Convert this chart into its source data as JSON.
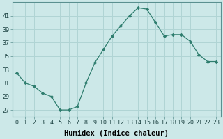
{
  "x": [
    0,
    1,
    2,
    3,
    4,
    5,
    6,
    7,
    8,
    9,
    10,
    11,
    12,
    13,
    14,
    15,
    16,
    17,
    18,
    19,
    20,
    21,
    22,
    23
  ],
  "y": [
    32.5,
    31.0,
    30.5,
    29.5,
    29.0,
    27.0,
    27.0,
    27.5,
    31.0,
    34.0,
    36.0,
    38.0,
    39.5,
    41.0,
    42.2,
    42.0,
    40.0,
    38.0,
    38.2,
    38.2,
    37.2,
    35.2,
    34.2,
    34.2
  ],
  "line_color": "#2e7d6e",
  "marker": "D",
  "marker_size": 2.2,
  "bg_color": "#cce8e8",
  "grid_color": "#b0d4d4",
  "xlabel": "Humidex (Indice chaleur)",
  "xlim": [
    -0.5,
    23.5
  ],
  "ylim": [
    26,
    43
  ],
  "yticks": [
    27,
    29,
    31,
    33,
    35,
    37,
    39,
    41
  ],
  "xticks": [
    0,
    1,
    2,
    3,
    4,
    5,
    6,
    7,
    8,
    9,
    10,
    11,
    12,
    13,
    14,
    15,
    16,
    17,
    18,
    19,
    20,
    21,
    22,
    23
  ],
  "xlabel_fontsize": 7.5,
  "tick_fontsize": 6.0
}
